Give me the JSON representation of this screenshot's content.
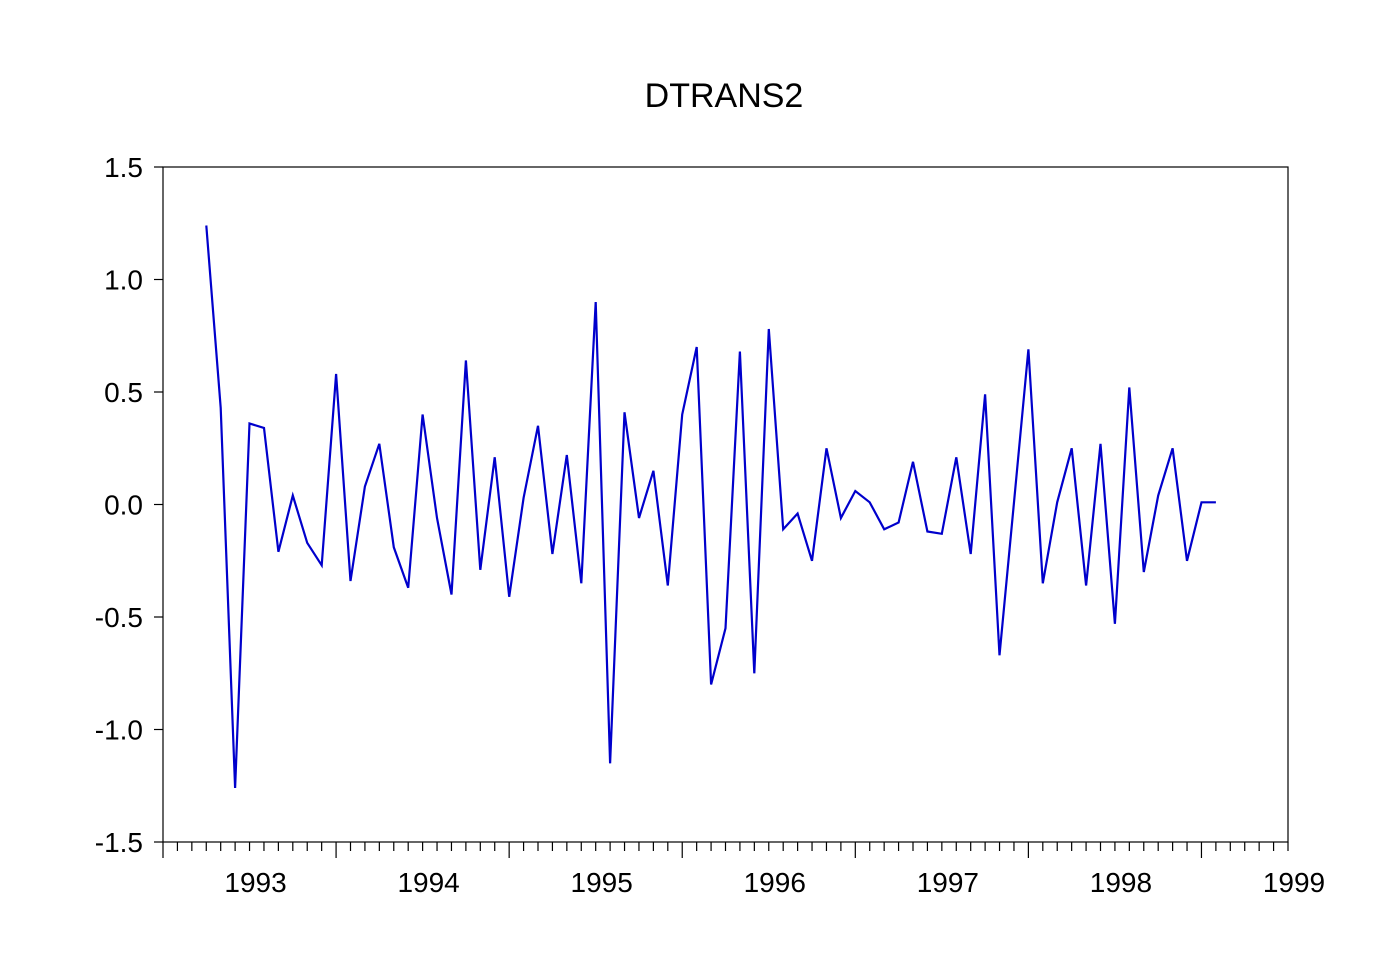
{
  "chart_data": {
    "type": "line",
    "title": "DTRANS2",
    "xlabel": "",
    "ylabel": "",
    "ylim": [
      -1.5,
      1.5
    ],
    "y_ticks": [
      1.5,
      1.0,
      0.5,
      0.0,
      -0.5,
      -1.0,
      -1.5
    ],
    "y_tick_labels": [
      "1.5",
      "1.0",
      "0.5",
      "0.0",
      "-0.5",
      "-1.0",
      "-1.5"
    ],
    "x_range": [
      "1992-07",
      "1999-01"
    ],
    "x_tick_labels": [
      "1993",
      "1994",
      "1995",
      "1996",
      "1997",
      "1998",
      "1999"
    ],
    "frequency": "monthly",
    "grid": false,
    "legend": "none",
    "series": [
      {
        "color": "#0000cc",
        "x": [
          "1992-10",
          "1992-11",
          "1992-12",
          "1993-01",
          "1993-02",
          "1993-03",
          "1993-04",
          "1993-05",
          "1993-06",
          "1993-07",
          "1993-08",
          "1993-09",
          "1993-10",
          "1993-11",
          "1993-12",
          "1994-01",
          "1994-02",
          "1994-03",
          "1994-04",
          "1994-05",
          "1994-06",
          "1994-07",
          "1994-08",
          "1994-09",
          "1994-10",
          "1994-11",
          "1994-12",
          "1995-01",
          "1995-02",
          "1995-03",
          "1995-04",
          "1995-05",
          "1995-06",
          "1995-07",
          "1995-08",
          "1995-09",
          "1995-10",
          "1995-11",
          "1995-12",
          "1996-01",
          "1996-02",
          "1996-03",
          "1996-04",
          "1996-05",
          "1996-06",
          "1996-07",
          "1996-08",
          "1996-09",
          "1996-10",
          "1996-11",
          "1996-12",
          "1997-01",
          "1997-02",
          "1997-03",
          "1997-04",
          "1997-05",
          "1997-06",
          "1997-07",
          "1997-08",
          "1997-09",
          "1997-10",
          "1997-11",
          "1997-12",
          "1998-01",
          "1998-02",
          "1998-03",
          "1998-04",
          "1998-05",
          "1998-06",
          "1998-07",
          "1998-08"
        ],
        "values": [
          1.24,
          0.43,
          -1.26,
          0.36,
          0.34,
          -0.21,
          0.04,
          -0.17,
          -0.27,
          0.58,
          -0.34,
          0.08,
          0.27,
          -0.19,
          -0.37,
          0.4,
          -0.06,
          -0.4,
          0.64,
          -0.29,
          0.21,
          -0.41,
          0.03,
          0.35,
          -0.22,
          0.22,
          -0.35,
          0.9,
          -1.15,
          0.41,
          -0.06,
          0.15,
          -0.36,
          0.4,
          0.7,
          -0.8,
          -0.55,
          0.68,
          -0.75,
          0.78,
          -0.11,
          -0.04,
          -0.25,
          0.25,
          -0.06,
          0.06,
          0.01,
          -0.11,
          -0.08,
          0.19,
          -0.12,
          -0.13,
          0.21,
          -0.22,
          0.49,
          -0.67,
          0.01,
          0.69,
          -0.35,
          0.01,
          0.25,
          -0.36,
          0.27,
          -0.53,
          0.52,
          -0.3,
          0.04,
          0.25,
          -0.25,
          0.01,
          0.01
        ]
      }
    ]
  }
}
